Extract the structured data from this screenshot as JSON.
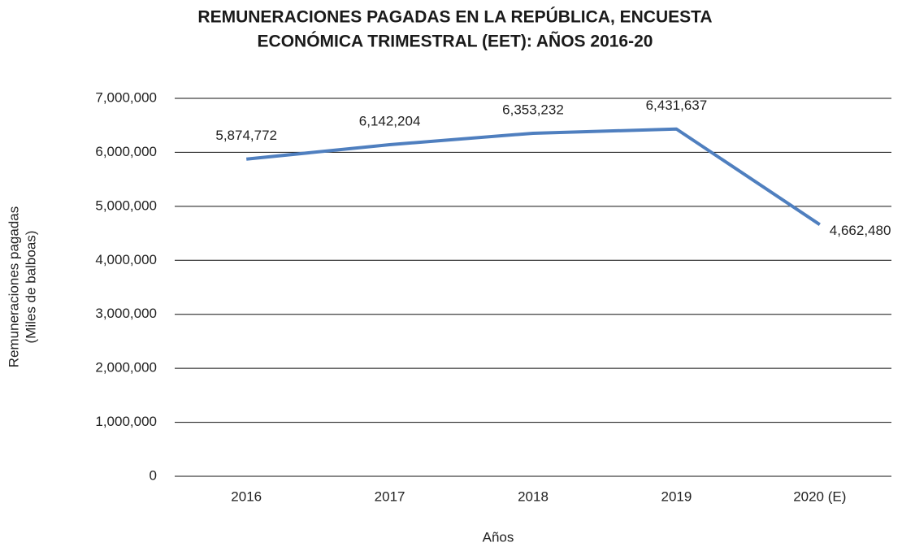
{
  "chart_data": {
    "type": "line",
    "title": [
      "REMUNERACIONES PAGADAS EN LA REPÚBLICA, ENCUESTA",
      "ECONÓMICA TRIMESTRAL (EET): AÑOS 2016-20"
    ],
    "x_label": "Años",
    "y_label": [
      "Remuneraciones pagadas",
      "(Miles de balboas)"
    ],
    "categories": [
      "2016",
      "2017",
      "2018",
      "2019",
      "2020 (E)"
    ],
    "series": [
      {
        "name": "Remuneraciones pagadas",
        "color": "#4f7fbf",
        "values": [
          5874772,
          6142204,
          6353232,
          6431637,
          4662480
        ],
        "value_labels": [
          "5,874,772",
          "6,142,204",
          "6,353,232",
          "6,431,637",
          "4,662,480"
        ]
      }
    ],
    "ylim": [
      0,
      7000000
    ],
    "yticks": [
      0,
      {
        "value": 1000000,
        "label": "1,000,000"
      },
      {
        "value": 2000000,
        "label": "2,000,000"
      },
      {
        "value": 3000000,
        "label": "3,000,000"
      },
      {
        "value": 4000000,
        "label": "4,000,000"
      },
      {
        "value": 5000000,
        "label": "5,000,000"
      },
      {
        "value": 6000000,
        "label": "6,000,000"
      },
      {
        "value": 7000000,
        "label": "7,000,000"
      }
    ],
    "grid": true
  }
}
